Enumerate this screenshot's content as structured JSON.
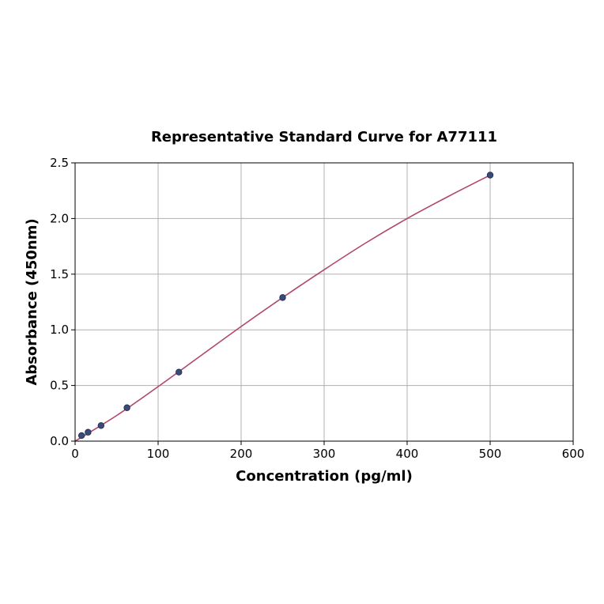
{
  "chart_data": {
    "type": "scatter",
    "title": "Representative Standard Curve for A77111",
    "xlabel": "Concentration (pg/ml)",
    "ylabel": "Absorbance (450nm)",
    "xlim": [
      0,
      600
    ],
    "ylim": [
      0,
      2.5
    ],
    "xticks": [
      0,
      100,
      200,
      300,
      400,
      500,
      600
    ],
    "yticks": [
      0.0,
      0.5,
      1.0,
      1.5,
      2.0,
      2.5
    ],
    "xtick_labels": [
      "0",
      "100",
      "200",
      "300",
      "400",
      "500",
      "600"
    ],
    "ytick_labels": [
      "0.0",
      "0.5",
      "1.0",
      "1.5",
      "2.0",
      "2.5"
    ],
    "grid": true,
    "legend": "none",
    "points": {
      "x": [
        7.8,
        15.6,
        31.25,
        62.5,
        125,
        250,
        500
      ],
      "y": [
        0.05,
        0.08,
        0.14,
        0.3,
        0.62,
        1.29,
        2.39
      ],
      "color": "#3b4a78"
    },
    "fit_curve": {
      "x": [
        0,
        50,
        100,
        150,
        200,
        250,
        300,
        350,
        400,
        450,
        500
      ],
      "y": [
        0.0,
        0.23,
        0.49,
        0.76,
        1.03,
        1.29,
        1.54,
        1.78,
        2.0,
        2.2,
        2.39
      ],
      "color": "#b0476a"
    }
  }
}
